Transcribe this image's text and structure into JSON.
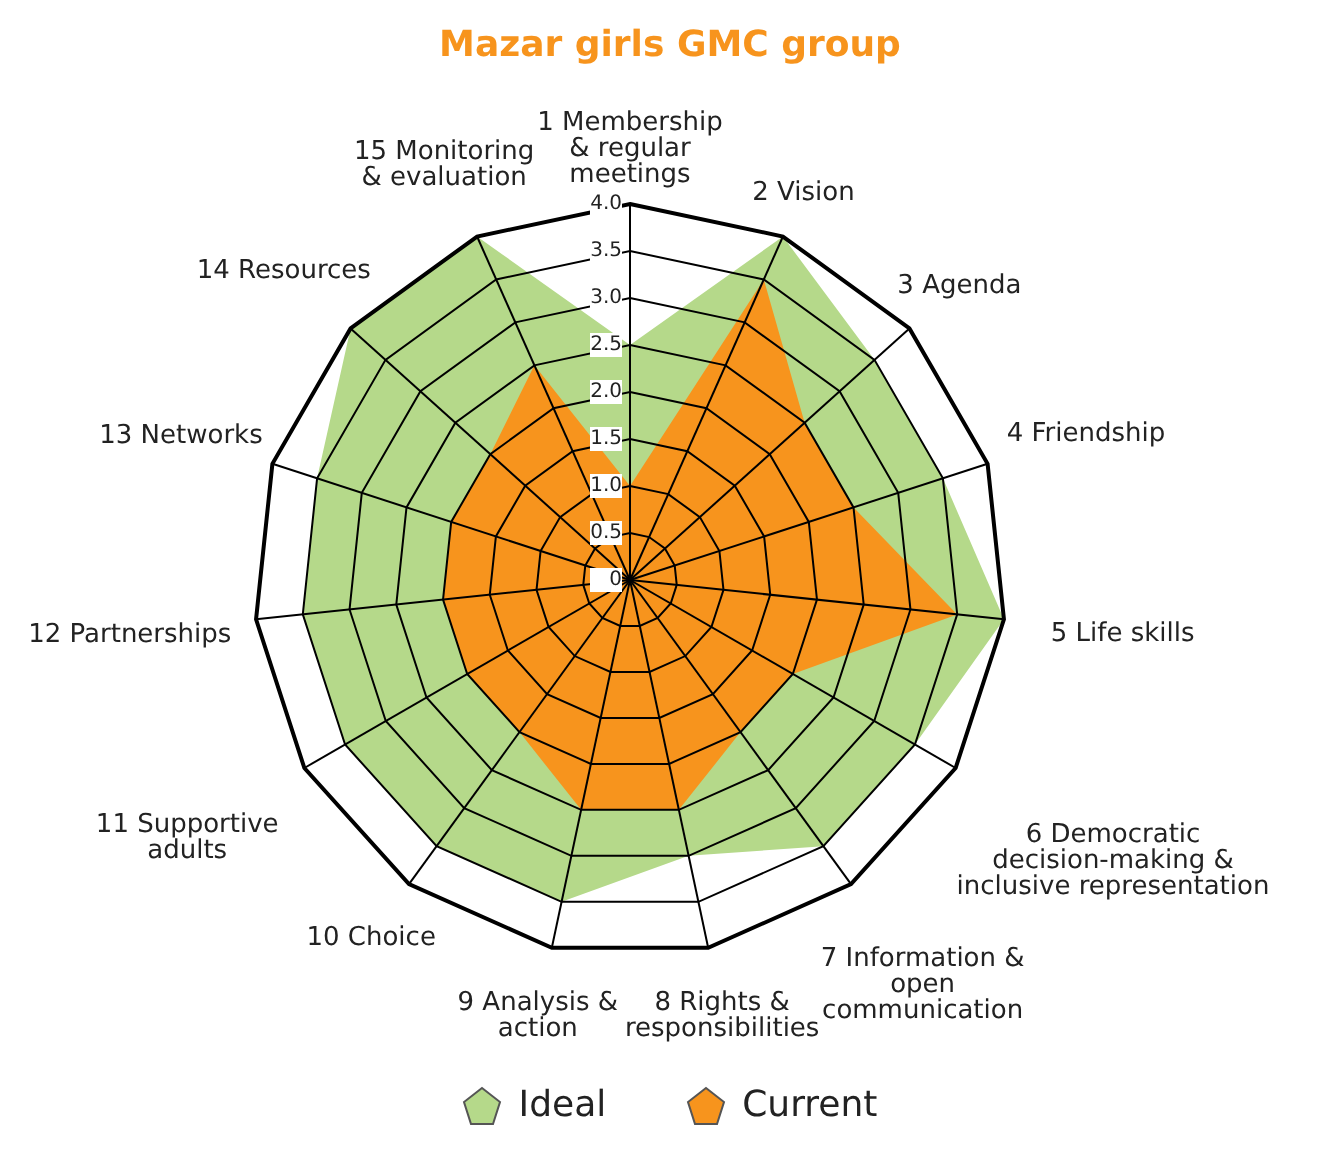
{
  "chart_data": {
    "type": "radar",
    "title": "Mazar girls GMC group",
    "categories": [
      "1 Membership & regular meetings",
      "2 Vision",
      "3 Agenda",
      "4 Friendship",
      "5  Life skills",
      "6 Democratic decision-making & inclusive representation",
      "7 Information & open communication",
      "8 Rights & responsibilities",
      "9 Analysis & action",
      "10 Choice",
      "11 Supportive adults",
      "12 Partnerships",
      "13 Networks",
      "14 Resources",
      "15 Monitoring & evaluation"
    ],
    "series": [
      {
        "name": "Ideal",
        "color": "#b5d98a",
        "values": [
          2.5,
          4.0,
          3.5,
          3.5,
          4.0,
          3.5,
          3.5,
          3.0,
          3.5,
          3.5,
          3.5,
          3.5,
          3.5,
          4.0,
          4.0
        ]
      },
      {
        "name": "Current",
        "color": "#f7941d",
        "values": [
          1.0,
          3.5,
          2.5,
          2.5,
          3.5,
          2.0,
          2.0,
          2.5,
          2.5,
          2.0,
          2.0,
          2.0,
          2.0,
          2.0,
          2.5
        ]
      }
    ],
    "ylim": [
      0,
      4
    ],
    "yticks": [
      {
        "value": 0,
        "label": "0"
      },
      {
        "value": 0.5,
        "label": "0.5"
      },
      {
        "value": 1,
        "label": "1.0"
      },
      {
        "value": 1.5,
        "label": "1.5"
      },
      {
        "value": 2,
        "label": "2.0"
      },
      {
        "value": 2.5,
        "label": "2.5"
      },
      {
        "value": 3,
        "label": "3.0"
      },
      {
        "value": 3.5,
        "label": "3.5"
      },
      {
        "value": 4,
        "label": "4.0"
      }
    ],
    "grid": true,
    "legend": "bottom"
  }
}
